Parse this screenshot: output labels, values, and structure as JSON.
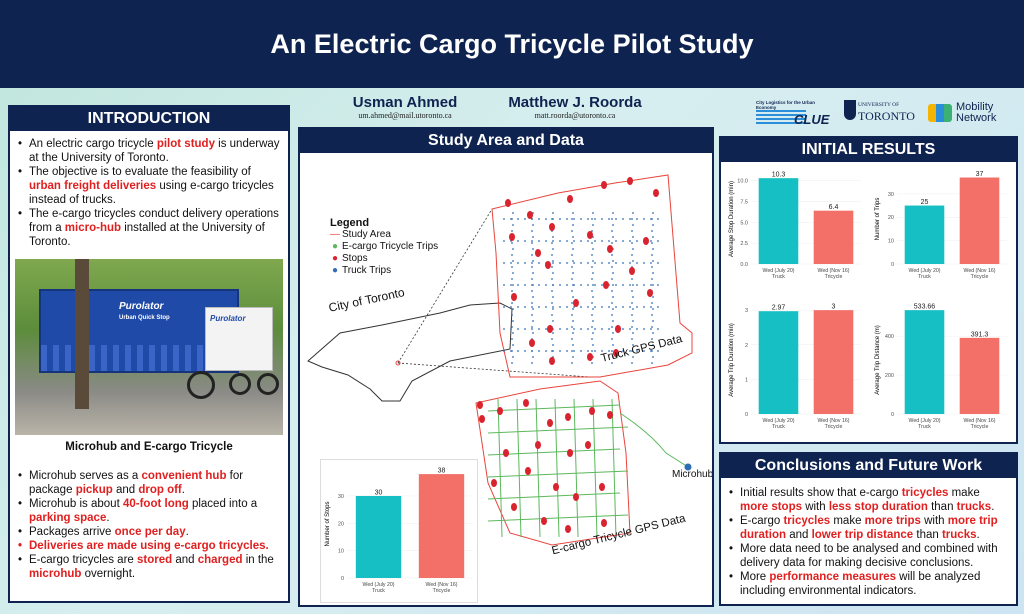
{
  "title": "An Electric Cargo Tricycle Pilot Study",
  "authors": [
    {
      "name": "Usman Ahmed",
      "email": "um.ahmed@mail.utoronto.ca"
    },
    {
      "name": "Matthew J. Roorda",
      "email": "matt.roorda@utoronto.ca"
    }
  ],
  "logos": {
    "clue_tagline": "City Logistics for the Urban Economy",
    "clue_word": "CLUE",
    "uoft_line1": "UNIVERSITY OF",
    "uoft_line2": "TORONTO",
    "mobility_line1": "Mobility",
    "mobility_line2": "Network"
  },
  "colors": {
    "navy": "#0f2350",
    "teal": "#15bfc3",
    "salmon": "#f27068",
    "highlight": "#e02020"
  },
  "intro": {
    "heading": "INTRODUCTION",
    "bullets": [
      [
        {
          "t": "An electric cargo tricycle "
        },
        {
          "t": "pilot study",
          "hl": true
        },
        {
          "t": " is underway at the University of Toronto."
        }
      ],
      [
        {
          "t": "The objective is to evaluate the feasibility of "
        },
        {
          "t": "urban freight deliveries",
          "hl": true
        },
        {
          "t": " using e-cargo tricycles instead of trucks."
        }
      ],
      [
        {
          "t": "The e-cargo tricycles conduct delivery operations from a "
        },
        {
          "t": "micro-hub",
          "hl": true
        },
        {
          "t": " installed at the University of Toronto."
        }
      ]
    ],
    "photo_brand": "Purolator",
    "photo_sub": "Urban Quick Stop",
    "photo_caption": "Microhub and E-cargo Tricycle",
    "bullets2": [
      {
        "red": false,
        "parts": [
          {
            "t": "Microhub serves as a "
          },
          {
            "t": "convenient hub",
            "hl": true
          },
          {
            "t": " for package "
          },
          {
            "t": "pickup",
            "hl": true
          },
          {
            "t": " and "
          },
          {
            "t": "drop off",
            "hl": true
          },
          {
            "t": "."
          }
        ]
      },
      {
        "red": false,
        "parts": [
          {
            "t": "Microhub is about "
          },
          {
            "t": "40-foot long",
            "hl": true
          },
          {
            "t": " placed into a "
          },
          {
            "t": "parking space",
            "hl": true
          },
          {
            "t": "."
          }
        ]
      },
      {
        "red": false,
        "parts": [
          {
            "t": "Packages arrive "
          },
          {
            "t": "once per day",
            "hl": true
          },
          {
            "t": "."
          }
        ]
      },
      {
        "red": true,
        "parts": [
          {
            "t": "Deliveries",
            "hl": true
          },
          {
            "t": " are made using "
          },
          {
            "t": "e-cargo tricycles.",
            "hl": true
          }
        ]
      },
      {
        "red": false,
        "parts": [
          {
            "t": "E-cargo tricycles are "
          },
          {
            "t": "stored",
            "hl": true
          },
          {
            "t": " and "
          },
          {
            "t": "charged",
            "hl": true
          },
          {
            "t": " in the "
          },
          {
            "t": "microhub",
            "hl": true
          },
          {
            "t": " overnight."
          }
        ]
      }
    ]
  },
  "study": {
    "heading": "Study Area and Data",
    "legend_title": "Legend",
    "legend": [
      {
        "label": "Study Area",
        "symbol": "line",
        "color": "#e8453c"
      },
      {
        "label": "E-cargo Tricycle Trips",
        "symbol": "dot",
        "color": "#5cb85c"
      },
      {
        "label": "Stops",
        "symbol": "dot",
        "color": "#d9232e"
      },
      {
        "label": "Truck Trips",
        "symbol": "dot",
        "color": "#2f6db5"
      }
    ],
    "city_label": "City of Toronto",
    "truck_label": "Truck GPS Data",
    "tricycle_label": "E-cargo Tricycle GPS Data",
    "microhub_label": "Microhub"
  },
  "results": {
    "heading": "INITIAL RESULTS"
  },
  "conclusions": {
    "heading": "Conclusions and Future Work",
    "bullets": [
      [
        {
          "t": "Initial results show that e-cargo "
        },
        {
          "t": "tricycles",
          "hl": true
        },
        {
          "t": " make "
        },
        {
          "t": "more stops",
          "hl": true
        },
        {
          "t": " with "
        },
        {
          "t": "less stop duration",
          "hl": true
        },
        {
          "t": " than "
        },
        {
          "t": "trucks",
          "hl": true
        },
        {
          "t": "."
        }
      ],
      [
        {
          "t": "E-cargo "
        },
        {
          "t": "tricycles",
          "hl": true
        },
        {
          "t": " make "
        },
        {
          "t": "more trips",
          "hl": true
        },
        {
          "t": " with "
        },
        {
          "t": "more trip duration",
          "hl": true
        },
        {
          "t": " and "
        },
        {
          "t": "lower trip distance",
          "hl": true
        },
        {
          "t": " than "
        },
        {
          "t": "trucks",
          "hl": true
        },
        {
          "t": "."
        }
      ],
      [
        {
          "t": "More data need to be analysed and combined with delivery data for making decisive conclusions."
        }
      ],
      [
        {
          "t": "More "
        },
        {
          "t": "performance measures",
          "hl": true
        },
        {
          "t": " will be analyzed including environmental indicators."
        }
      ]
    ]
  },
  "chart_data": [
    {
      "id": "stop-duration",
      "type": "bar",
      "categories": [
        "Wed (July 20)\nTruck",
        "Wed (Nov 16)\nTricycle"
      ],
      "values": [
        10.3,
        6.4
      ],
      "ylabel": "Average Stop Duration (min)",
      "ylim": [
        0,
        10.8
      ],
      "yticks": [
        0.0,
        2.5,
        5.0,
        7.5,
        10.0
      ],
      "tick_labels": [
        "0.0",
        "2.5",
        "5.0",
        "7.5",
        "10.0"
      ],
      "data_labels": [
        "10.3",
        "6.4"
      ],
      "colors": [
        "#15bfc3",
        "#f27068"
      ]
    },
    {
      "id": "trips",
      "type": "bar",
      "categories": [
        "Wed (July 20)\nTruck",
        "Wed (Nov 16)\nTricycle"
      ],
      "values": [
        25,
        37
      ],
      "ylabel": "Number of Trips",
      "ylim": [
        0,
        38.5
      ],
      "yticks": [
        0,
        10,
        20,
        30
      ],
      "tick_labels": [
        "0",
        "10",
        "20",
        "30"
      ],
      "data_labels": [
        "25",
        "37"
      ],
      "colors": [
        "#15bfc3",
        "#f27068"
      ]
    },
    {
      "id": "trip-duration",
      "type": "bar",
      "categories": [
        "Wed (July 20)\nTruck",
        "Wed (Nov 16)\nTricycle"
      ],
      "values": [
        2.97,
        3
      ],
      "ylabel": "Average Trip Duration (min)",
      "ylim": [
        0,
        3.12
      ],
      "yticks": [
        0,
        1,
        2,
        3
      ],
      "tick_labels": [
        "0",
        "1",
        "2",
        "3"
      ],
      "data_labels": [
        "2.97",
        "3"
      ],
      "colors": [
        "#15bfc3",
        "#f27068"
      ]
    },
    {
      "id": "trip-distance",
      "type": "bar",
      "categories": [
        "Wed (July 20)\nTruck",
        "Wed (Nov 16)\nTricycle"
      ],
      "values": [
        533.66,
        391.3
      ],
      "ylabel": "Average Trip Distance (m)",
      "ylim": [
        0,
        555
      ],
      "yticks": [
        0,
        200,
        400
      ],
      "tick_labels": [
        "0",
        "200",
        "400"
      ],
      "data_labels": [
        "533.66",
        "391.3"
      ],
      "colors": [
        "#15bfc3",
        "#f27068"
      ]
    },
    {
      "id": "stops",
      "type": "bar",
      "categories": [
        "Wed (July 20)\nTruck",
        "Wed (Nov 16)\nTricycle"
      ],
      "values": [
        30,
        38
      ],
      "ylabel": "Number of Stops",
      "ylim": [
        0,
        39.5
      ],
      "yticks": [
        0,
        10,
        20,
        30
      ],
      "tick_labels": [
        "0",
        "10",
        "20",
        "30"
      ],
      "data_labels": [
        "30",
        "38"
      ],
      "colors": [
        "#15bfc3",
        "#f27068"
      ]
    }
  ]
}
